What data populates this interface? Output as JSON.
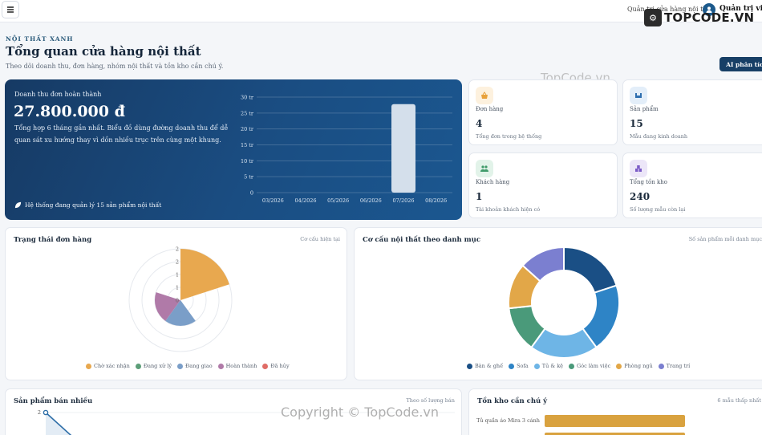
{
  "topbar": {
    "breadcrumb": "Quản trị cửa hàng nội thất",
    "user": "Quản trị viên",
    "watermark_logo": "TOPCODE.VN"
  },
  "watermarks": {
    "center": "TopCode.vn",
    "bottom": "Copyright © TopCode.vn"
  },
  "header": {
    "eyebrow": "NỘI THẤT XANH",
    "title": "Tổng quan cửa hàng nội thất",
    "subtitle": "Theo dõi doanh thu, đơn hàng, nhóm nội thất và tồn kho cần chú ý.",
    "ai_button": "AI phân tích"
  },
  "hero": {
    "label": "Doanh thu đơn hoàn thành",
    "amount": "27.800.000 đ",
    "description": "Tổng hợp 6 tháng gần nhất. Biểu đồ dùng đường doanh thu để dễ quan sát xu hướng thay vì dồn nhiều trục trên cùng một khung.",
    "footer": "Hệ thống đang quản lý 15 sản phẩm nội thất",
    "chart_data": {
      "type": "bar",
      "categories": [
        "03/2026",
        "04/2026",
        "05/2026",
        "06/2026",
        "07/2026",
        "08/2026"
      ],
      "values": [
        0,
        0,
        0,
        0,
        27.8,
        0
      ],
      "y_ticks": [
        "0",
        "5 tr",
        "10 tr",
        "15 tr",
        "20 tr",
        "25 tr",
        "30 tr"
      ],
      "ylim": [
        0,
        30
      ]
    }
  },
  "stats": [
    {
      "title": "Đơn hàng",
      "value": "4",
      "sub": "Tổng đơn trong hệ thống",
      "icon": "basket-icon",
      "color": "#e8a13a",
      "bg": "#fdf1de"
    },
    {
      "title": "Sản phẩm",
      "value": "15",
      "sub": "Mẫu đang kinh doanh",
      "icon": "furniture-icon",
      "color": "#2f6fb0",
      "bg": "#e3eef9"
    },
    {
      "title": "Khách hàng",
      "value": "1",
      "sub": "Tài khoản khách hiện có",
      "icon": "users-icon",
      "color": "#3f9a6a",
      "bg": "#e2f3e9"
    },
    {
      "title": "Tổng tồn kho",
      "value": "240",
      "sub": "Số lượng mẫu còn lại",
      "icon": "boxes-icon",
      "color": "#7b5bc7",
      "bg": "#ece6f8"
    }
  ],
  "order_status": {
    "title": "Trạng thái đơn hàng",
    "note": "Cơ cấu hiện tại",
    "chart_data": {
      "type": "pie",
      "categories": [
        "Chờ xác nhận",
        "Đang xử lý",
        "Đang giao",
        "Hoàn thành",
        "Đã hủy"
      ],
      "values": [
        2,
        0,
        1,
        1,
        0
      ],
      "colors": [
        "#e8a84f",
        "#5c9e78",
        "#7a9ec8",
        "#b07aa8",
        "#e06c66"
      ],
      "r_ticks": [
        "0",
        "1",
        "1",
        "2",
        "2"
      ],
      "rlim": [
        0,
        2
      ]
    }
  },
  "category_mix": {
    "title": "Cơ cấu nội thất theo danh mục",
    "note": "Số sản phẩm mỗi danh mục",
    "chart_data": {
      "type": "pie",
      "categories": [
        "Bàn & ghế",
        "Sofa",
        "Tủ & kệ",
        "Góc làm việc",
        "Phòng ngủ",
        "Trang trí"
      ],
      "values": [
        3,
        3,
        3,
        2,
        2,
        2
      ],
      "colors": [
        "#1a4f85",
        "#2e84c6",
        "#6eb5e6",
        "#4a9a7a",
        "#e2a748",
        "#7b7fd0"
      ]
    }
  },
  "best_sellers": {
    "title": "Sản phẩm bán nhiều",
    "note": "Theo số lượng bán",
    "chart_data": {
      "type": "line",
      "y_ticks": [
        "2"
      ],
      "values": [
        2
      ]
    }
  },
  "low_stock": {
    "title": "Tồn kho cần chú ý",
    "note": "6 mẫu thấp nhất",
    "chart_data": {
      "type": "bar",
      "categories": [
        "Tủ quần áo Mira 3 cánh"
      ],
      "values": [
        1
      ],
      "color": "#d9a23f"
    }
  }
}
